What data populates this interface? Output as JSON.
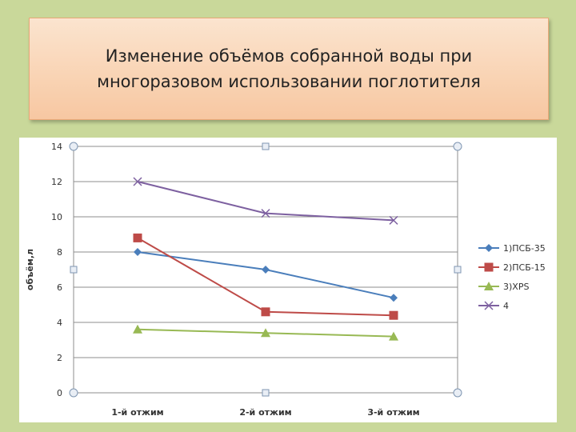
{
  "slide": {
    "title_line1": "Изменение объёмов собранной воды при",
    "title_line2": "многоразовом использовании поглотителя"
  },
  "chart_data": {
    "type": "line",
    "title": "",
    "xlabel": "",
    "ylabel": "объём,л",
    "ylim": [
      0,
      14
    ],
    "yticks": [
      0,
      2,
      4,
      6,
      8,
      10,
      12,
      14
    ],
    "categories": [
      "1-й отжим",
      "2-й отжим",
      "3-й отжим"
    ],
    "legend_position": "right",
    "series": [
      {
        "name": "1)ПСБ-35",
        "values": [
          8.0,
          7.0,
          5.4
        ],
        "color": "#4a7ebb",
        "marker": "diamond"
      },
      {
        "name": "2)ПСБ-15",
        "values": [
          8.8,
          4.6,
          4.4
        ],
        "color": "#be4b48",
        "marker": "square"
      },
      {
        "name": "3)XPS",
        "values": [
          3.6,
          3.4,
          3.2
        ],
        "color": "#98b954",
        "marker": "triangle"
      },
      {
        "name": "4",
        "values": [
          12.0,
          10.2,
          9.8
        ],
        "color": "#7d60a0",
        "marker": "x"
      }
    ]
  }
}
